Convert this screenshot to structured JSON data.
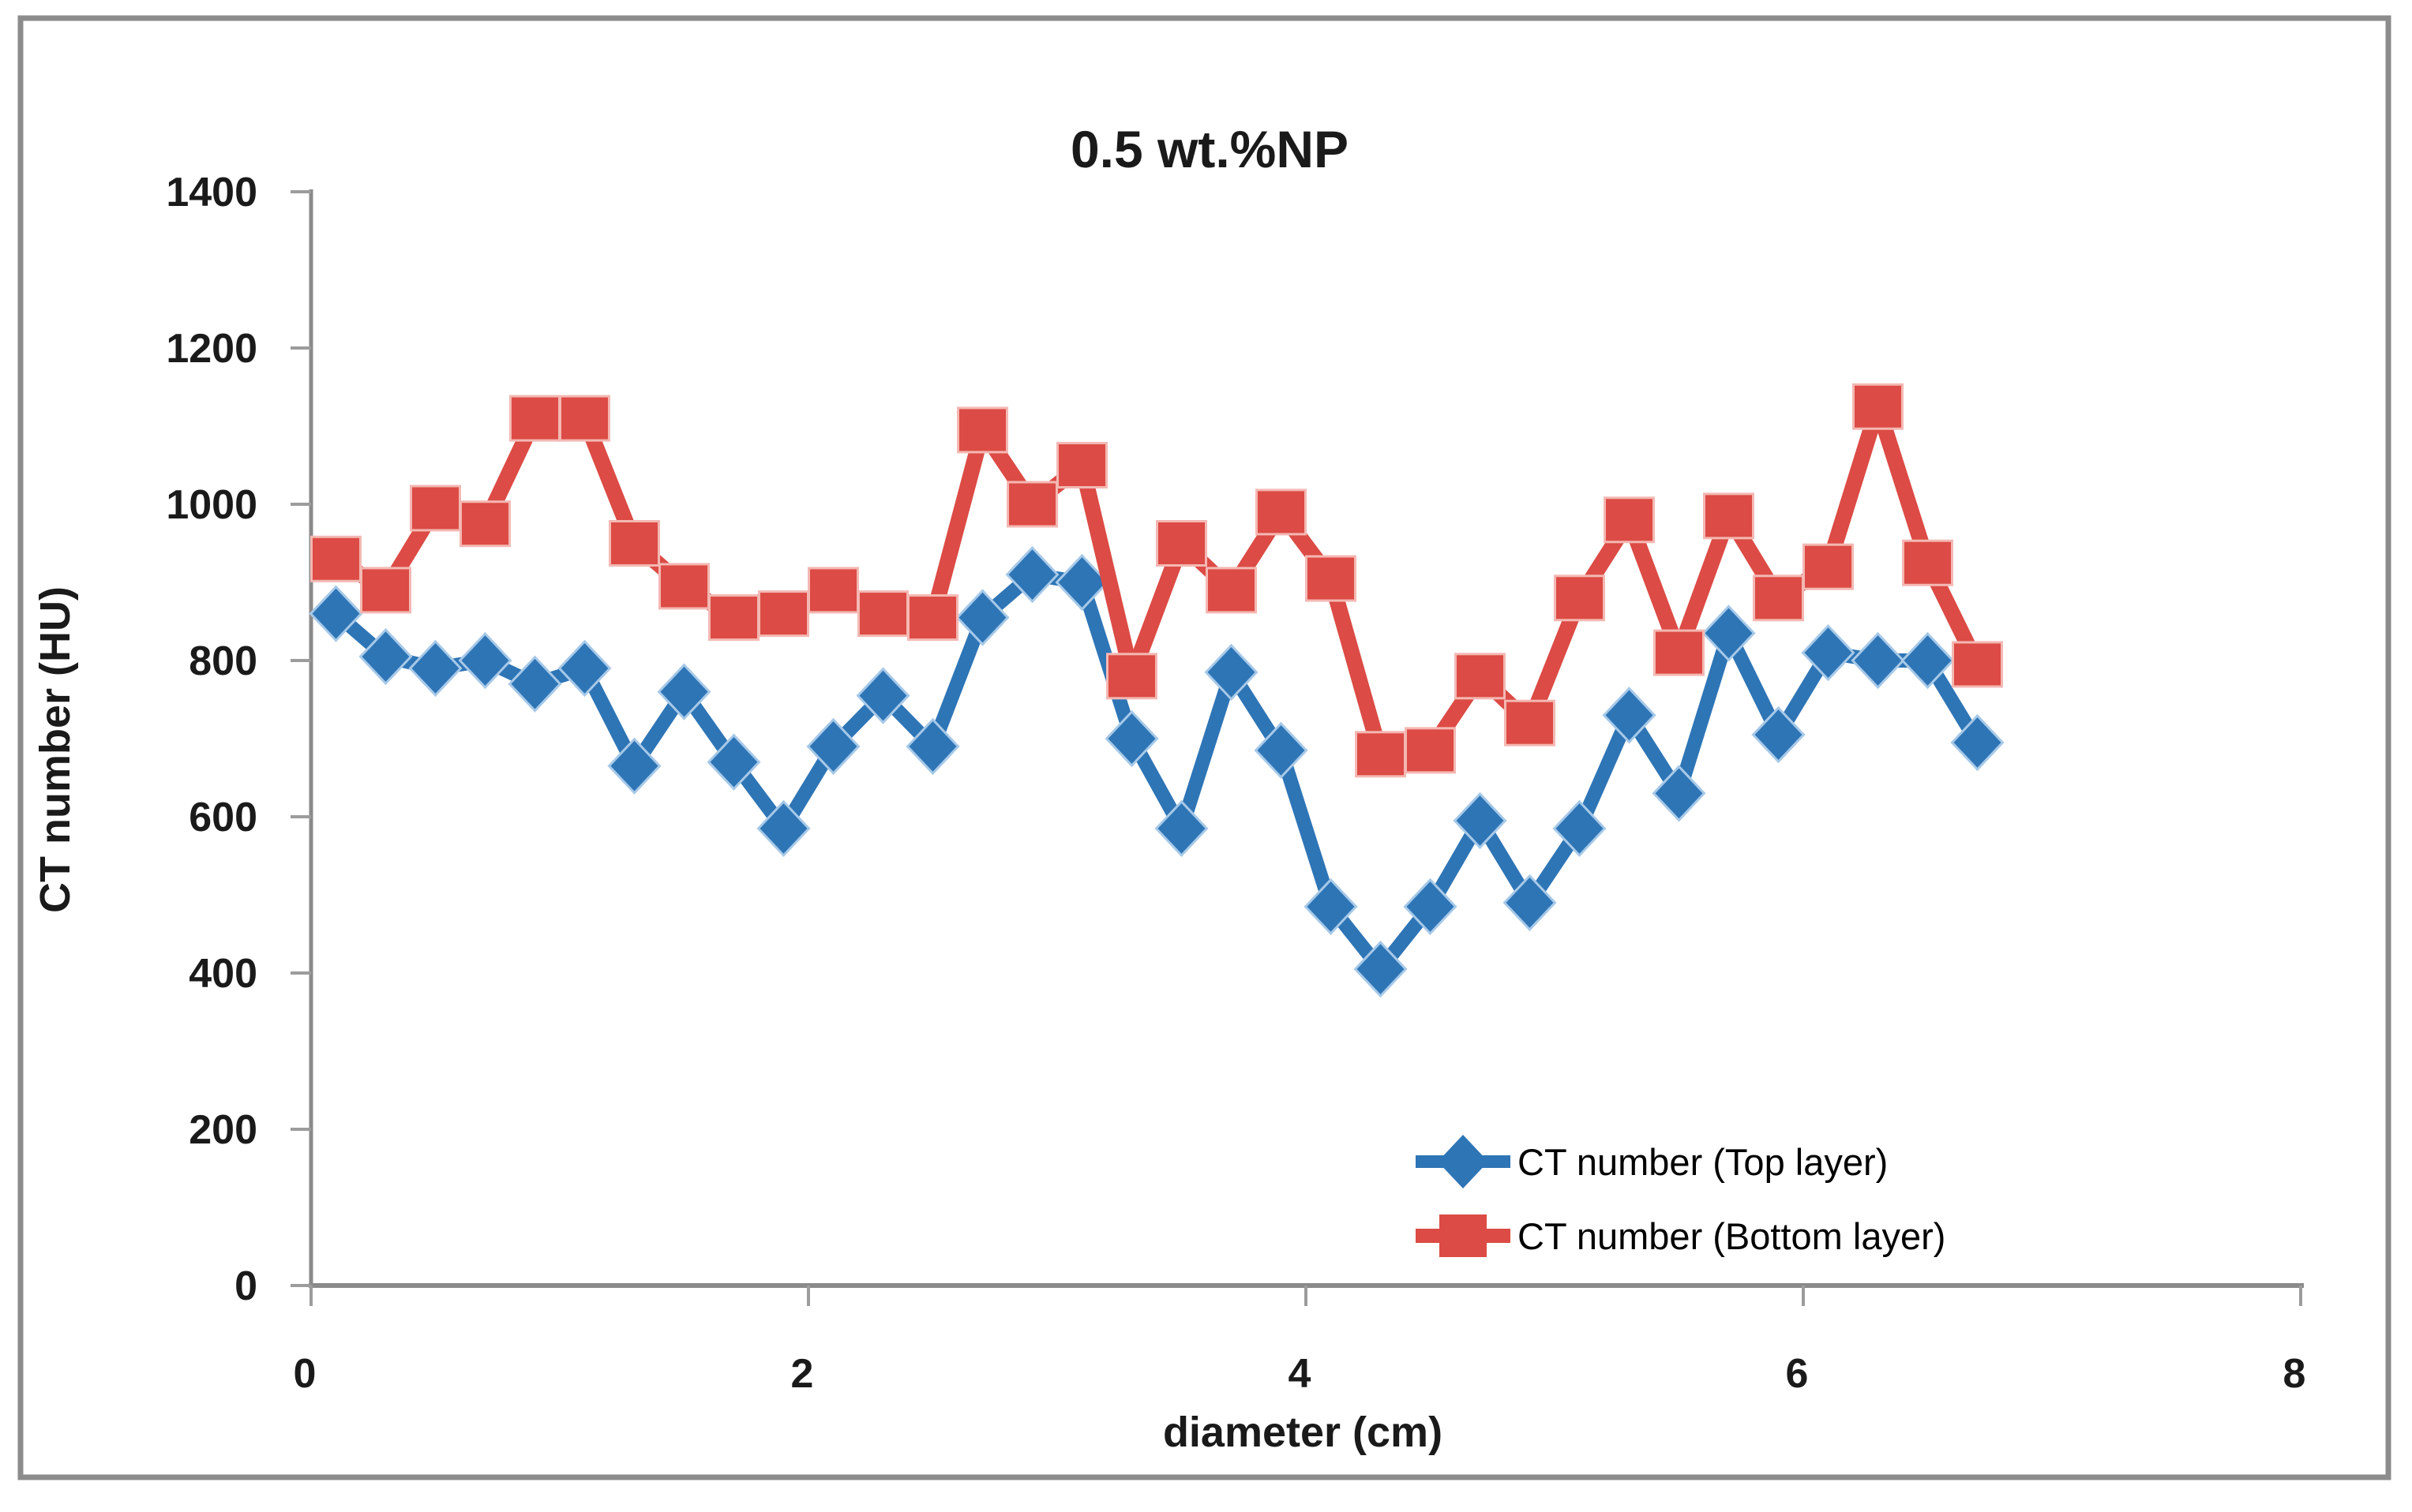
{
  "figure": {
    "title": "0.5 wt.%NP",
    "background_color": "#ffffff",
    "border_color": "#8c8c8c"
  },
  "axes": {
    "x_axis_title": "diameter (cm)",
    "y_axis_title": "CT number (HU)",
    "axis_line_color": "#8a8a8a",
    "tick_color": "#9c9c9c",
    "tick_label_color": "#1a1a1a"
  },
  "legend": {
    "entries": [
      {
        "label": "CT number (Top layer)",
        "marker": "diamond",
        "color": "#2E75B6"
      },
      {
        "label": "CT number (Bottom layer)",
        "marker": "square",
        "color": "#DC4B45"
      }
    ],
    "position": "inside-bottom-right",
    "border": "none"
  },
  "chart_data": {
    "type": "line",
    "title": "0.5 wt.%NP",
    "xlabel": "diameter (cm)",
    "ylabel": "CT number (HU)",
    "xlim": [
      0,
      8
    ],
    "ylim": [
      0,
      1400
    ],
    "x_ticks": [
      0,
      2,
      4,
      6,
      8
    ],
    "y_ticks": [
      0,
      200,
      400,
      600,
      800,
      1000,
      1200,
      1400
    ],
    "grid": false,
    "legend_position": "inside-bottom-right",
    "x": [
      0.1,
      0.3,
      0.5,
      0.7,
      0.9,
      1.1,
      1.3,
      1.5,
      1.7,
      1.9,
      2.1,
      2.3,
      2.5,
      2.7,
      2.9,
      3.1,
      3.3,
      3.5,
      3.7,
      3.9,
      4.1,
      4.3,
      4.5,
      4.7,
      4.9,
      5.1,
      5.3,
      5.5,
      5.7,
      5.9,
      6.1,
      6.3,
      6.5,
      6.7
    ],
    "series": [
      {
        "name": "CT number (Top layer)",
        "color": "#2E75B6",
        "halo_color": "#A7C9E8",
        "marker": "diamond",
        "values": [
          860,
          805,
          790,
          800,
          770,
          790,
          665,
          760,
          670,
          585,
          690,
          755,
          690,
          855,
          910,
          900,
          700,
          585,
          785,
          685,
          485,
          405,
          485,
          595,
          490,
          585,
          730,
          630,
          835,
          705,
          810,
          800,
          800,
          695
        ]
      },
      {
        "name": "CT number (Bottom layer)",
        "color": "#DC4B45",
        "halo_color": "#F4B8B3",
        "marker": "square",
        "values": [
          930,
          890,
          995,
          975,
          1110,
          1110,
          950,
          895,
          855,
          860,
          890,
          860,
          855,
          1095,
          1000,
          1050,
          780,
          950,
          890,
          990,
          905,
          680,
          685,
          780,
          720,
          880,
          980,
          810,
          985,
          880,
          920,
          1125,
          925,
          795
        ]
      }
    ]
  }
}
